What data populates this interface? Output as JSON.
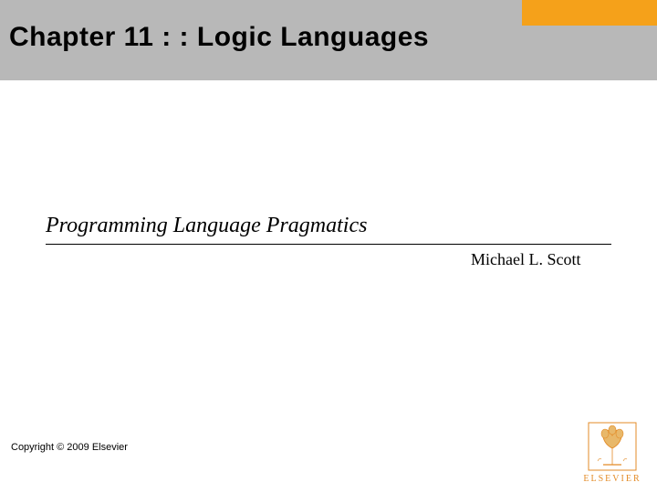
{
  "colors": {
    "header_band": "#b8b8b8",
    "orange_block": "#f5a11a",
    "background": "#ffffff",
    "text": "#000000",
    "logo_orange": "#e38b27",
    "logo_tree_fill": "#e8b86a"
  },
  "header": {
    "title": "Chapter 11 : : Logic Languages",
    "title_fontsize": 30,
    "title_weight": 900
  },
  "book": {
    "title": "Programming Language Pragmatics",
    "title_fontsize": 24,
    "underline_width": 620
  },
  "author": {
    "name": "Michael L. Scott",
    "fontsize": 18
  },
  "footer": {
    "copyright": "Copyright © 2009 Elsevier",
    "copyright_fontsize": 11
  },
  "publisher": {
    "name": "ELSEVIER",
    "logo_label": "elsevier-tree-logo"
  }
}
